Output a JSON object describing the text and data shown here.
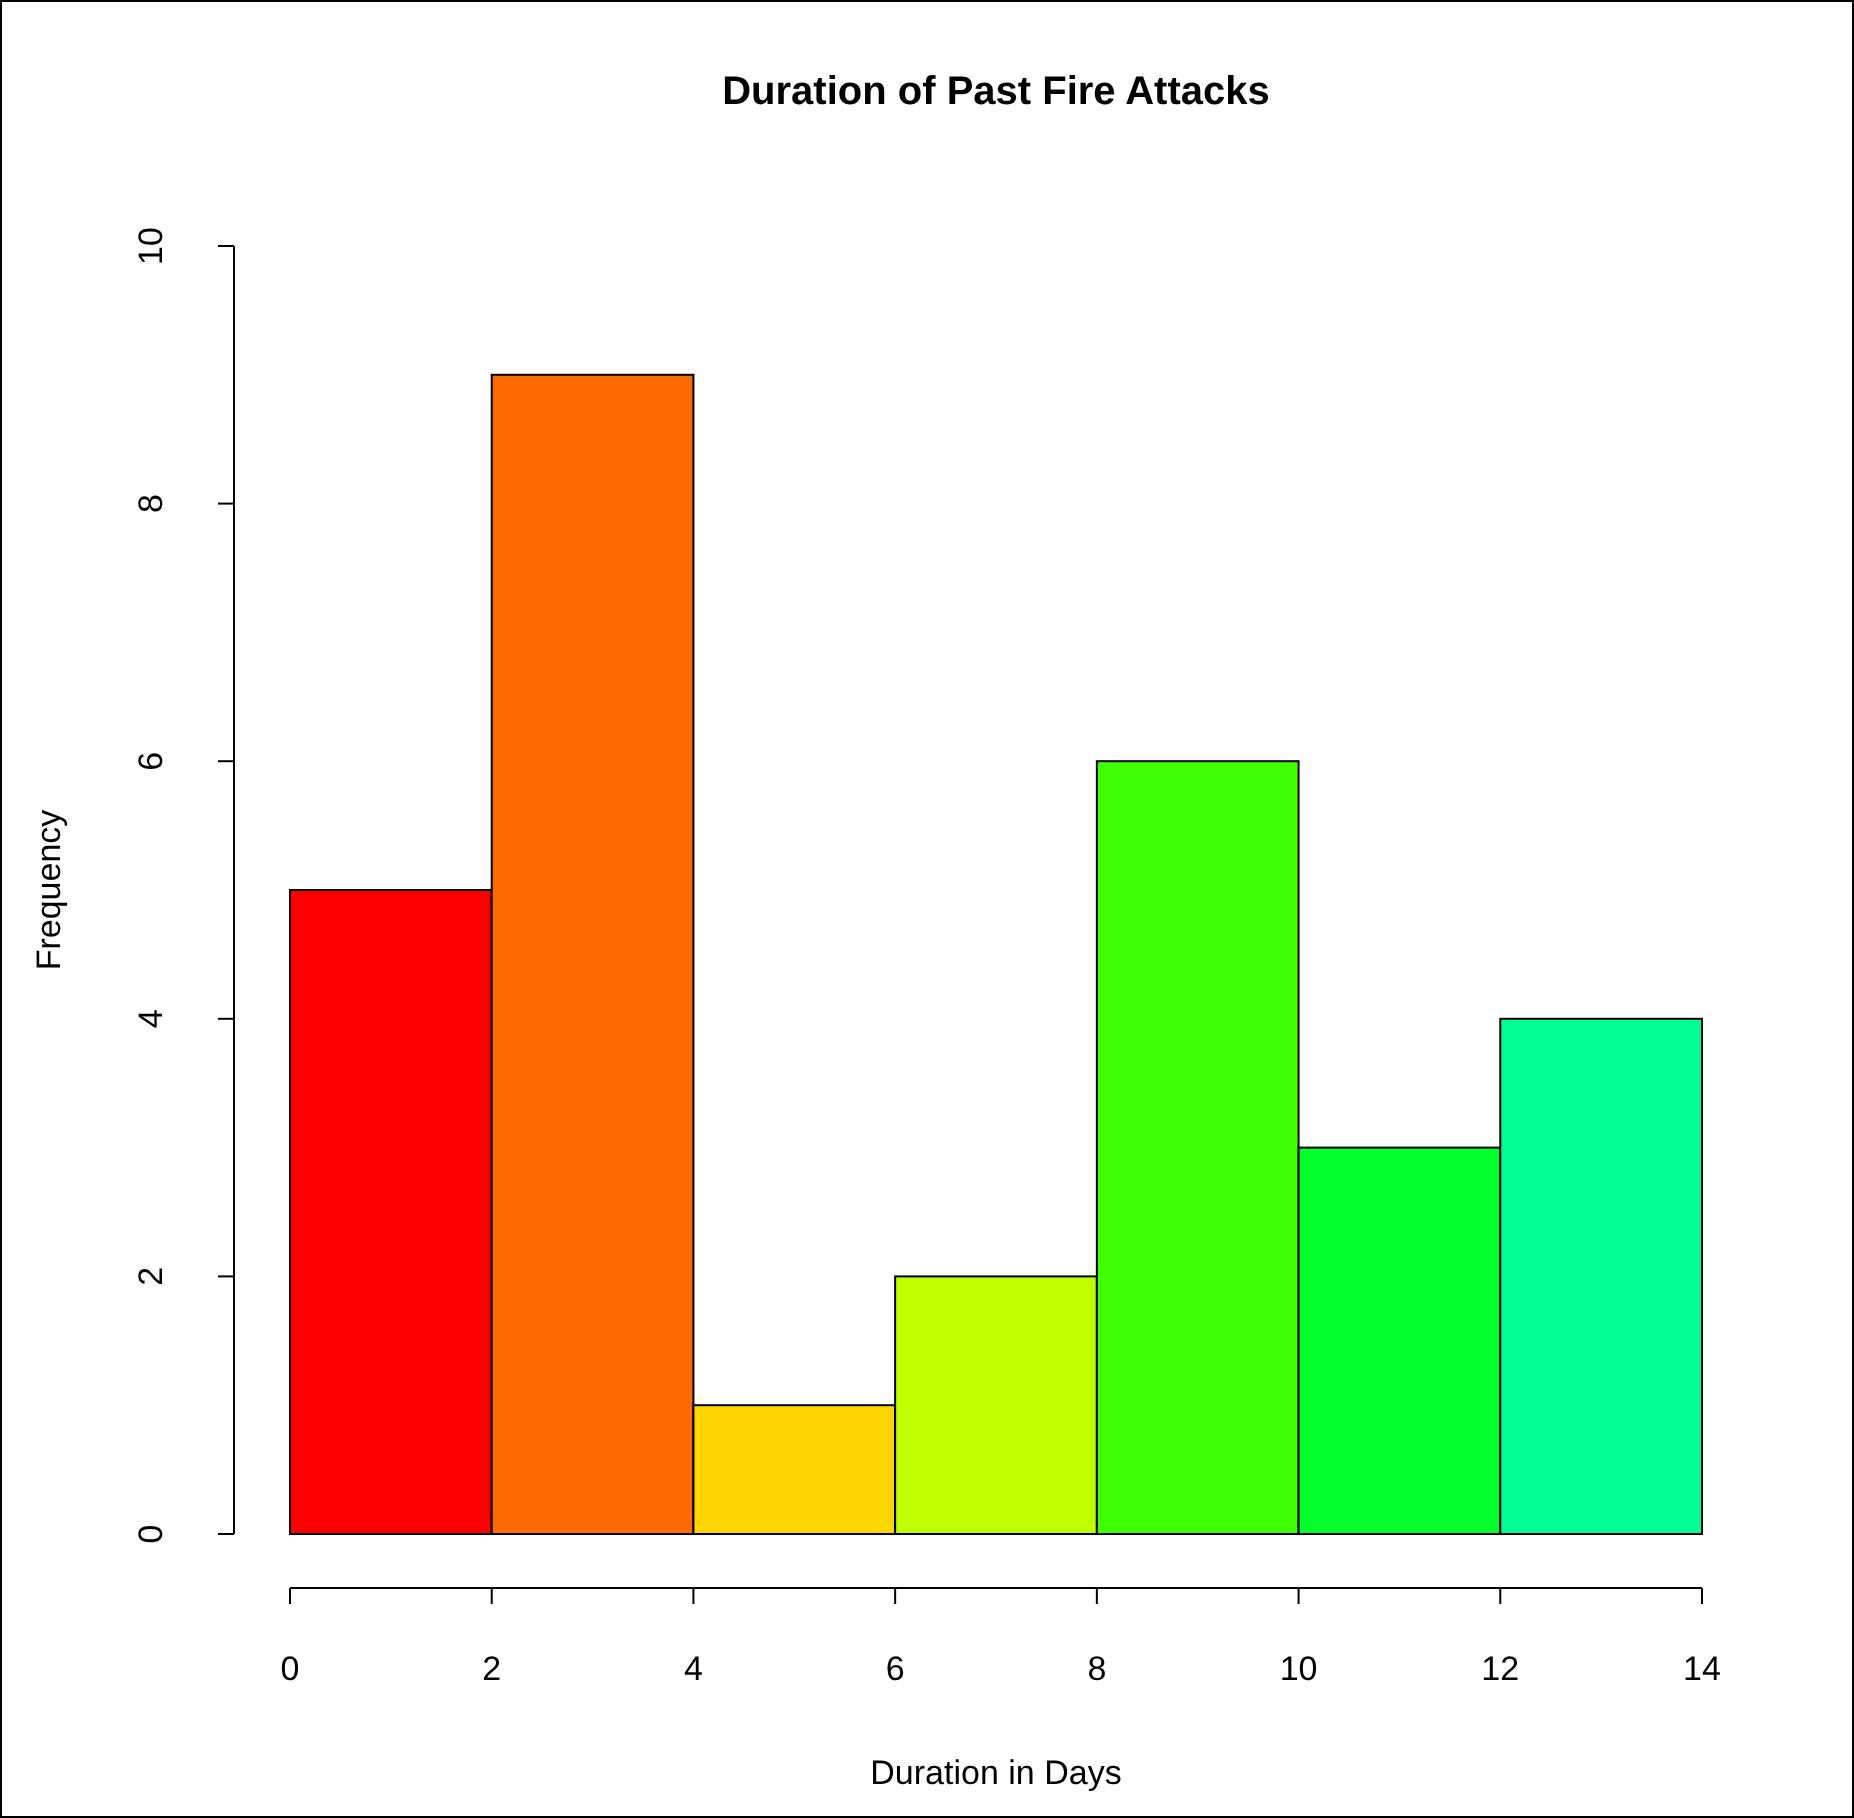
{
  "chart_data": {
    "type": "histogram",
    "title": "Duration of Past Fire Attacks",
    "xlabel": "Duration in Days",
    "ylabel": "Frequency",
    "bins": [
      0,
      2,
      4,
      6,
      8,
      10,
      12,
      14
    ],
    "values": [
      5,
      9,
      1,
      2,
      6,
      3,
      4
    ],
    "colors": [
      "#ff0000",
      "#ff6a00",
      "#ffd500",
      "#bfff00",
      "#40ff00",
      "#00ff2b",
      "#00ff95"
    ],
    "xlim": [
      0,
      14
    ],
    "xticks": [
      0,
      2,
      4,
      6,
      8,
      10,
      12,
      14
    ],
    "ylim": [
      0,
      10
    ],
    "yticks": [
      0,
      2,
      4,
      6,
      8,
      10
    ]
  }
}
